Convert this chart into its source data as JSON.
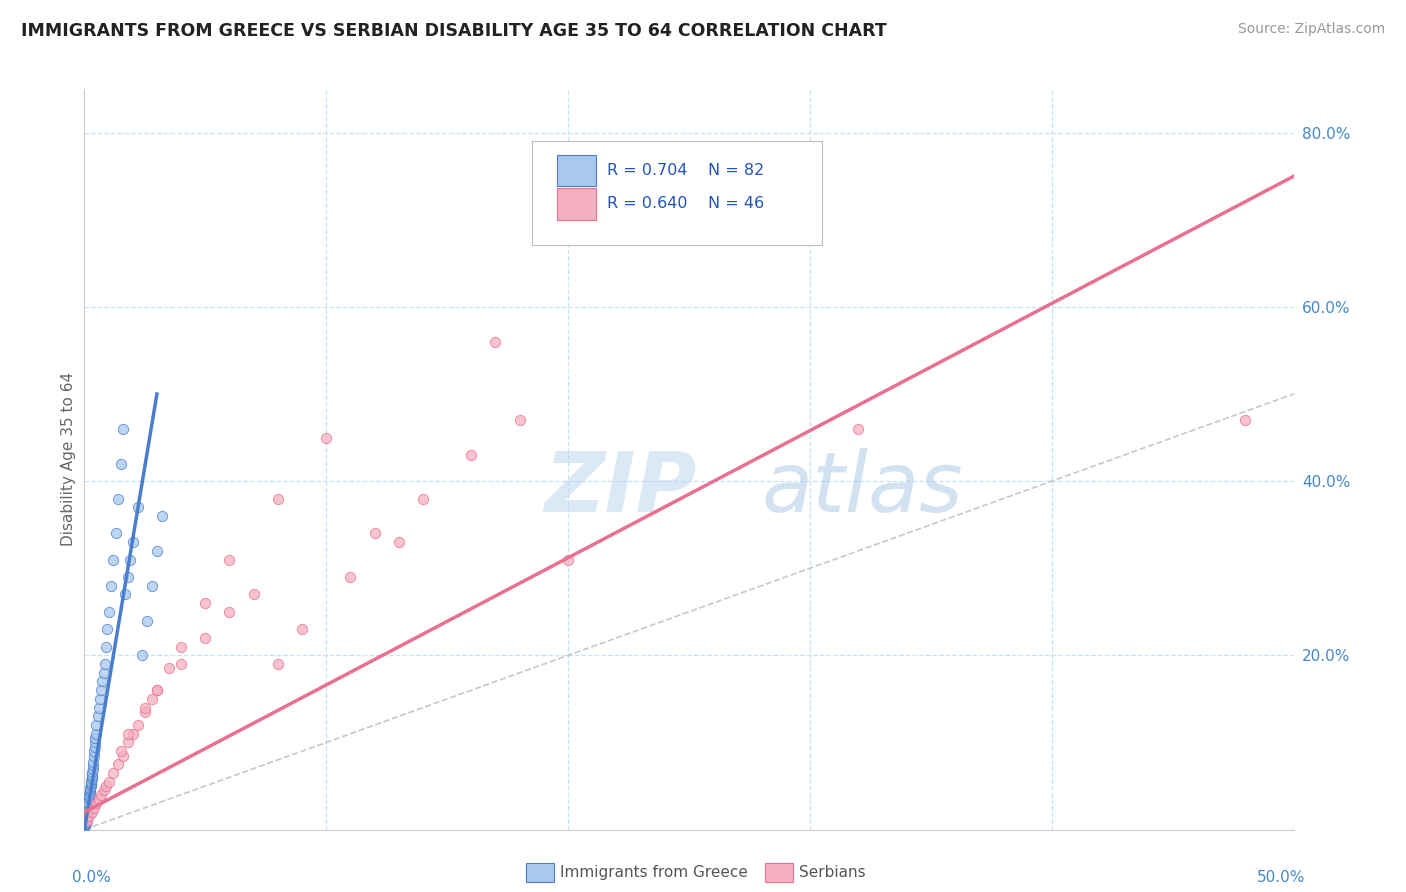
{
  "title": "IMMIGRANTS FROM GREECE VS SERBIAN DISABILITY AGE 35 TO 64 CORRELATION CHART",
  "source": "Source: ZipAtlas.com",
  "ylabel": "Disability Age 35 to 64",
  "legend_label1": "Immigrants from Greece",
  "legend_label2": "Serbians",
  "watermark_zip": "ZIP",
  "watermark_atlas": "atlas",
  "xlim": [
    0.0,
    0.5
  ],
  "ylim": [
    0.0,
    0.85
  ],
  "color_greece": "#A8C8EE",
  "color_serbia": "#F4B0C0",
  "color_greece_line": "#4A7ECC",
  "color_serbia_line": "#E87090",
  "color_diag": "#BBBBBB",
  "background_color": "#FFFFFF",
  "grid_color": "#C8E4F4",
  "title_color": "#222222",
  "axis_label_color": "#4488CC",
  "y_ticks": [
    0.2,
    0.4,
    0.6,
    0.8
  ],
  "x_ticks": [
    0.1,
    0.2,
    0.3,
    0.4,
    0.5
  ],
  "greece_x": [
    0.0002,
    0.0003,
    0.0004,
    0.0005,
    0.0006,
    0.0006,
    0.0007,
    0.0007,
    0.0008,
    0.0008,
    0.0009,
    0.001,
    0.001,
    0.0011,
    0.0012,
    0.0012,
    0.0013,
    0.0014,
    0.0015,
    0.0015,
    0.0016,
    0.0017,
    0.0018,
    0.0019,
    0.002,
    0.0021,
    0.0022,
    0.0023,
    0.0024,
    0.0025,
    0.0026,
    0.0027,
    0.0028,
    0.0029,
    0.003,
    0.0031,
    0.0032,
    0.0033,
    0.0034,
    0.0035,
    0.0036,
    0.0038,
    0.004,
    0.0042,
    0.0044,
    0.0046,
    0.0048,
    0.005,
    0.0055,
    0.006,
    0.0065,
    0.007,
    0.0075,
    0.008,
    0.0085,
    0.009,
    0.0095,
    0.01,
    0.011,
    0.012,
    0.013,
    0.014,
    0.015,
    0.016,
    0.017,
    0.018,
    0.019,
    0.02,
    0.022,
    0.024,
    0.026,
    0.028,
    0.03,
    0.032,
    0.0001,
    0.0001,
    0.0002,
    0.0002,
    0.0003,
    0.0003,
    0.0004,
    0.0005
  ],
  "greece_y": [
    0.005,
    0.006,
    0.007,
    0.008,
    0.01,
    0.009,
    0.011,
    0.012,
    0.013,
    0.014,
    0.015,
    0.016,
    0.018,
    0.019,
    0.02,
    0.022,
    0.023,
    0.025,
    0.026,
    0.028,
    0.03,
    0.032,
    0.035,
    0.036,
    0.038,
    0.04,
    0.042,
    0.044,
    0.046,
    0.048,
    0.05,
    0.052,
    0.054,
    0.056,
    0.058,
    0.06,
    0.063,
    0.066,
    0.07,
    0.074,
    0.078,
    0.085,
    0.09,
    0.095,
    0.1,
    0.105,
    0.11,
    0.12,
    0.13,
    0.14,
    0.15,
    0.16,
    0.17,
    0.18,
    0.19,
    0.21,
    0.23,
    0.25,
    0.28,
    0.31,
    0.34,
    0.38,
    0.42,
    0.46,
    0.27,
    0.29,
    0.31,
    0.33,
    0.37,
    0.2,
    0.24,
    0.28,
    0.32,
    0.36,
    0.004,
    0.005,
    0.006,
    0.007,
    0.008,
    0.009,
    0.01,
    0.011
  ],
  "serbia_x": [
    0.001,
    0.002,
    0.003,
    0.004,
    0.005,
    0.006,
    0.007,
    0.008,
    0.009,
    0.01,
    0.012,
    0.014,
    0.016,
    0.018,
    0.02,
    0.025,
    0.03,
    0.035,
    0.04,
    0.05,
    0.06,
    0.08,
    0.1,
    0.12,
    0.14,
    0.16,
    0.18,
    0.2,
    0.015,
    0.018,
    0.025,
    0.03,
    0.04,
    0.05,
    0.21,
    0.17,
    0.06,
    0.07,
    0.08,
    0.09,
    0.11,
    0.13,
    0.022,
    0.028,
    0.48,
    0.32
  ],
  "serbia_y": [
    0.01,
    0.015,
    0.02,
    0.025,
    0.03,
    0.035,
    0.04,
    0.045,
    0.05,
    0.055,
    0.065,
    0.075,
    0.085,
    0.1,
    0.11,
    0.135,
    0.16,
    0.185,
    0.21,
    0.26,
    0.31,
    0.38,
    0.45,
    0.34,
    0.38,
    0.43,
    0.47,
    0.31,
    0.09,
    0.11,
    0.14,
    0.16,
    0.19,
    0.22,
    0.68,
    0.56,
    0.25,
    0.27,
    0.19,
    0.23,
    0.29,
    0.33,
    0.12,
    0.15,
    0.47,
    0.46
  ],
  "greece_line_x": [
    0.0,
    0.03
  ],
  "greece_line_y": [
    0.0,
    0.5
  ],
  "serbia_line_x": [
    0.0,
    0.5
  ],
  "serbia_line_y": [
    0.02,
    0.75
  ]
}
